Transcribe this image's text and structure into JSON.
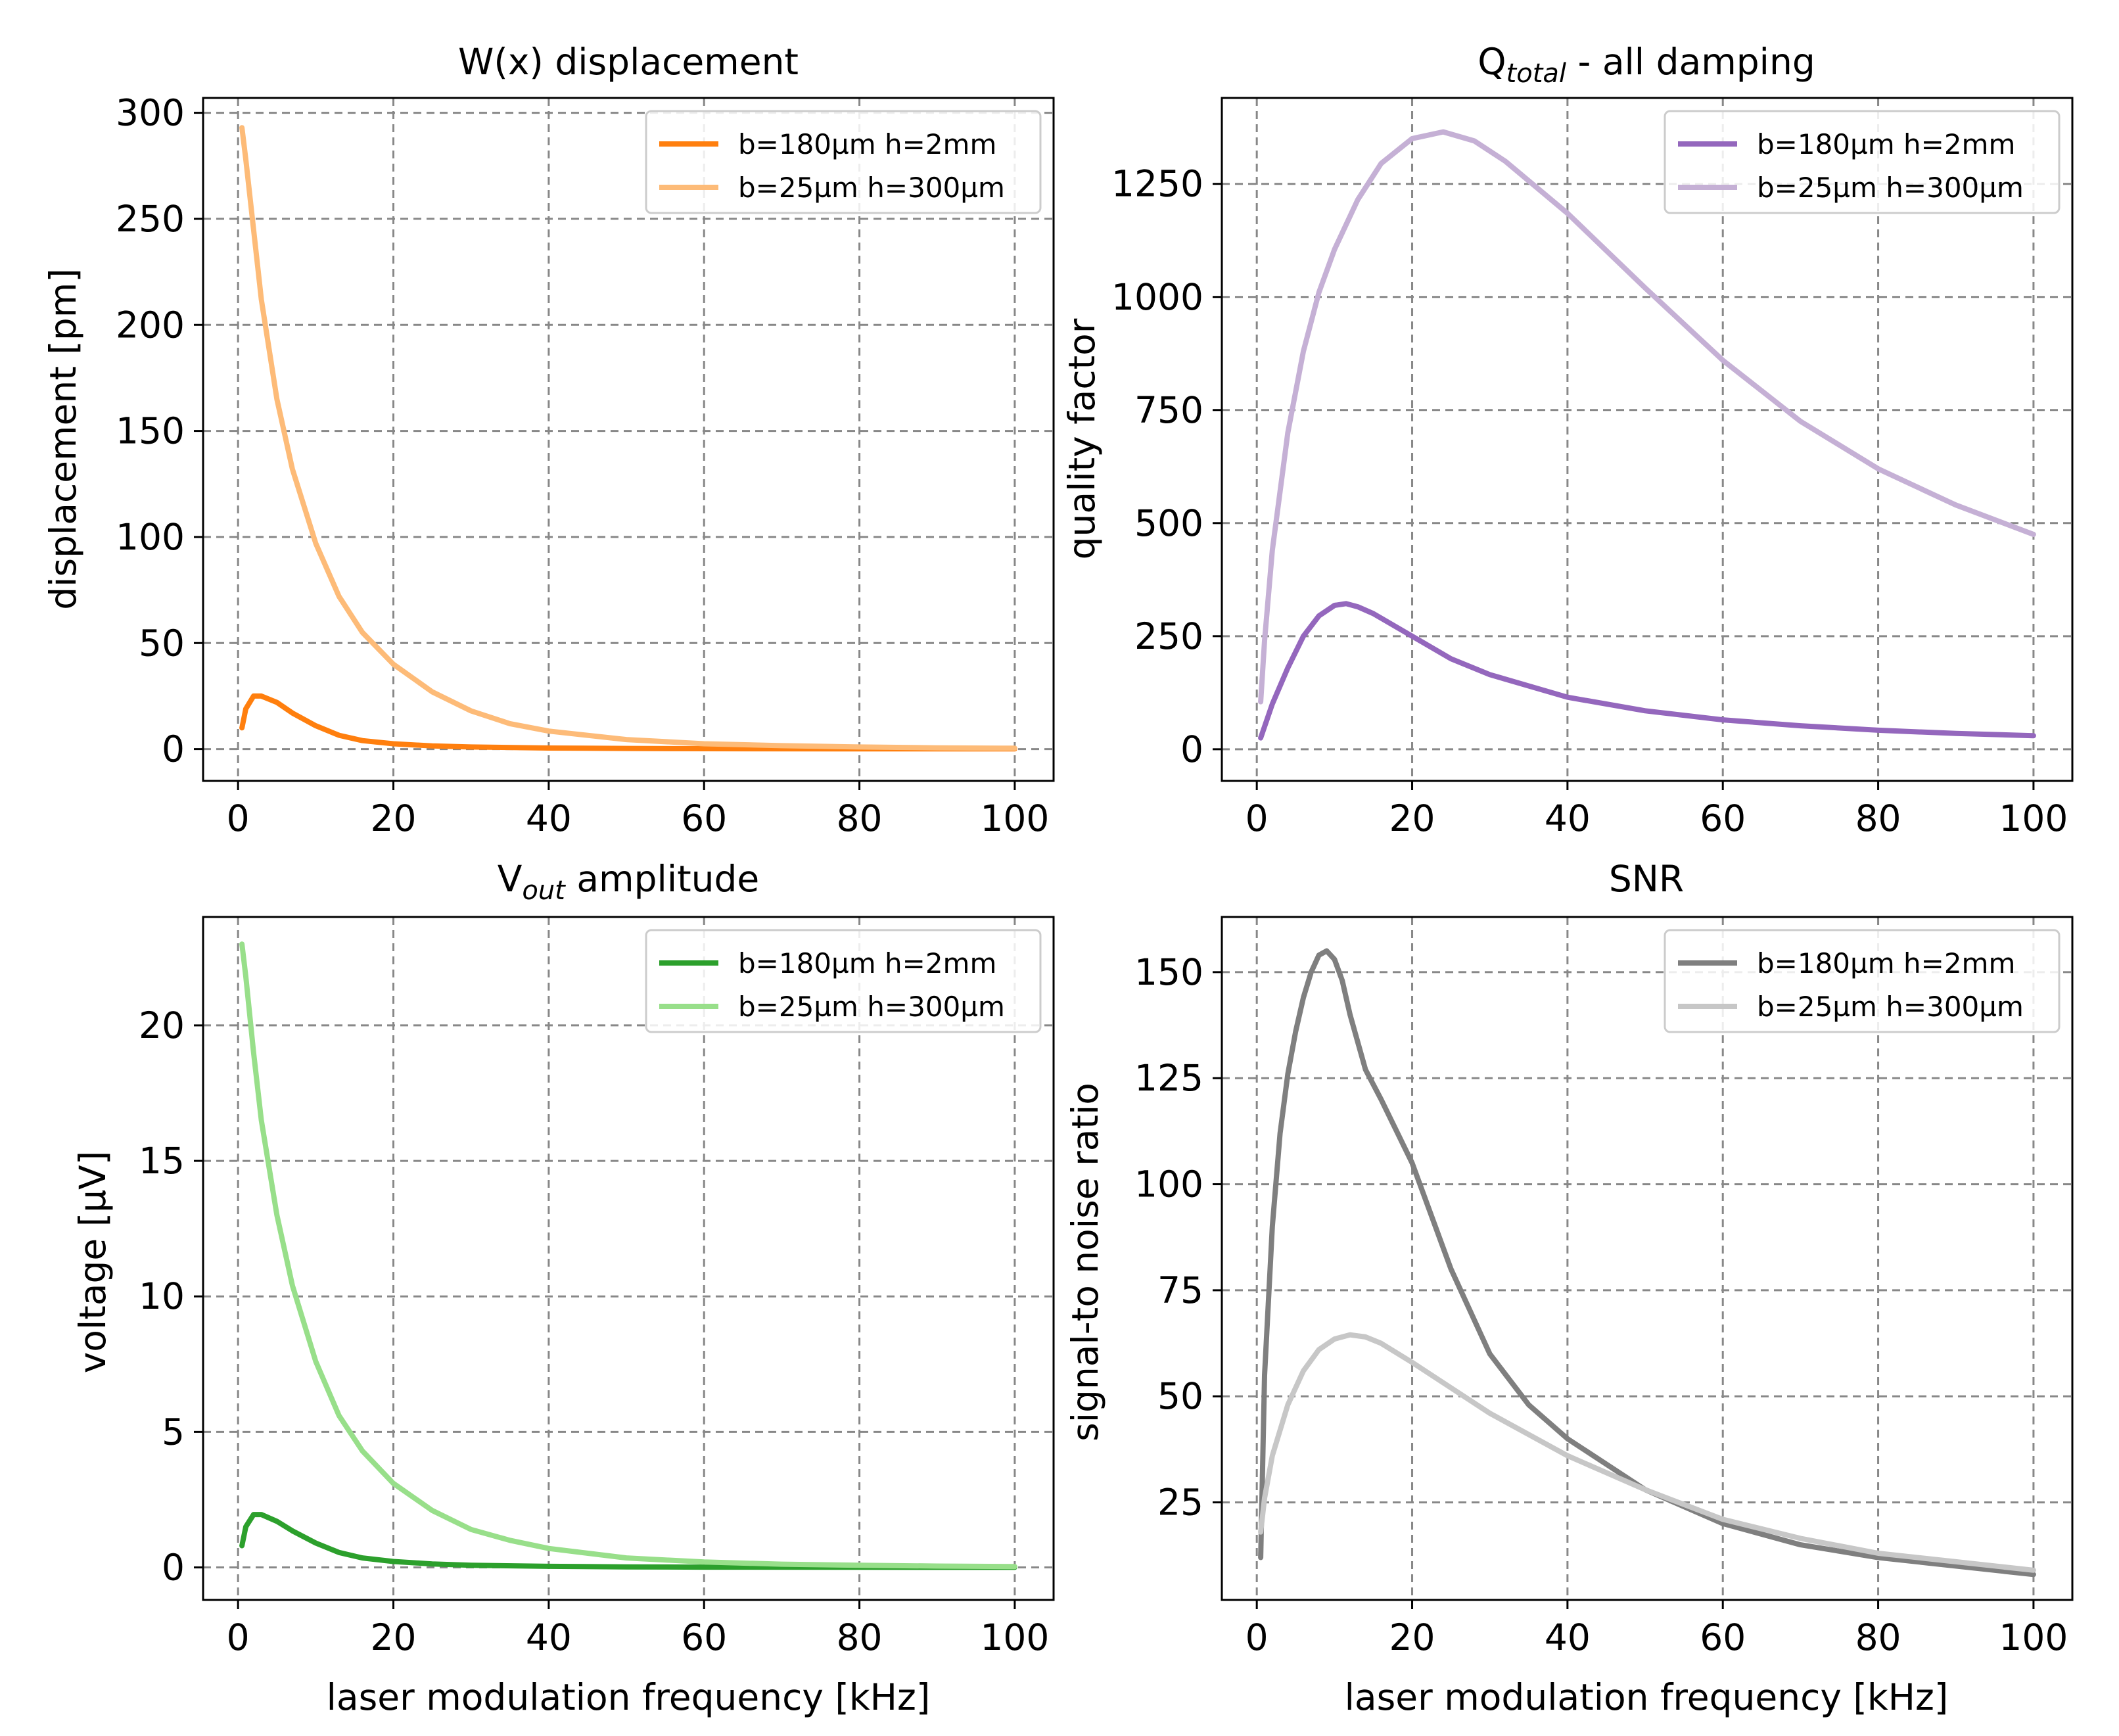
{
  "chart_data": [
    {
      "type": "line",
      "title": "W(x) displacement",
      "xlabel": "",
      "ylabel": "displacement [pm]",
      "xlim": [
        -4.5,
        105
      ],
      "ylim": [
        -15,
        307
      ],
      "xticks": [
        0,
        20,
        40,
        60,
        80,
        100
      ],
      "yticks": [
        0,
        50,
        100,
        150,
        200,
        250,
        300
      ],
      "grid": true,
      "legend": "top-right",
      "series": [
        {
          "name": "b=180µm h=2mm",
          "color": "#ff7f0e",
          "x": [
            0.5,
            1,
            2,
            3,
            5,
            7,
            10,
            13,
            16,
            20,
            25,
            30,
            40,
            50,
            60,
            80,
            100
          ],
          "y": [
            10,
            19,
            25,
            25,
            22,
            17,
            11,
            6.5,
            4,
            2.5,
            1.5,
            1,
            0.5,
            0.3,
            0.2,
            0.1,
            0.1
          ]
        },
        {
          "name": "b=25µm h=300µm",
          "color": "#fdbb78",
          "x": [
            0.5,
            1,
            2,
            3,
            5,
            7,
            10,
            13,
            16,
            20,
            25,
            30,
            35,
            40,
            50,
            60,
            70,
            80,
            90,
            100
          ],
          "y": [
            293,
            278,
            245,
            212,
            165,
            132,
            97,
            72,
            55,
            40,
            27,
            18,
            12,
            8.5,
            4.5,
            2.5,
            1.6,
            1,
            0.6,
            0.4
          ]
        }
      ]
    },
    {
      "type": "line",
      "title": "Q",
      "title_sub": "total",
      "title_suffix": " - all damping",
      "xlabel": "",
      "ylabel": "quality factor",
      "xlim": [
        -4.5,
        105
      ],
      "ylim": [
        -70,
        1440
      ],
      "xticks": [
        0,
        20,
        40,
        60,
        80,
        100
      ],
      "yticks": [
        0,
        250,
        500,
        750,
        1000,
        1250
      ],
      "grid": true,
      "legend": "top-right",
      "series": [
        {
          "name": "b=180µm h=2mm",
          "color": "#9467bd",
          "x": [
            0.5,
            2,
            4,
            6,
            8,
            10,
            11.5,
            13,
            15,
            20,
            25,
            30,
            40,
            50,
            60,
            70,
            80,
            90,
            100
          ],
          "y": [
            25,
            100,
            180,
            250,
            295,
            318,
            322,
            315,
            300,
            250,
            200,
            165,
            115,
            85,
            65,
            52,
            42,
            35,
            30
          ]
        },
        {
          "name": "b=25µm h=300µm",
          "color": "#c5b0d5",
          "x": [
            0.5,
            1,
            2,
            4,
            6,
            8,
            10,
            13,
            16,
            20,
            24,
            28,
            32,
            40,
            50,
            60,
            70,
            80,
            90,
            100
          ],
          "y": [
            105,
            240,
            440,
            700,
            880,
            1010,
            1105,
            1215,
            1295,
            1350,
            1365,
            1345,
            1300,
            1185,
            1020,
            860,
            725,
            620,
            540,
            475
          ]
        }
      ]
    },
    {
      "type": "line",
      "title": "V",
      "title_sub": "out",
      "title_suffix": " amplitude",
      "xlabel": "laser modulation frequency [kHz]",
      "ylabel": "voltage [µV]",
      "xlim": [
        -4.5,
        105
      ],
      "ylim": [
        -1.2,
        24
      ],
      "xticks": [
        0,
        20,
        40,
        60,
        80,
        100
      ],
      "yticks": [
        0,
        5,
        10,
        15,
        20
      ],
      "grid": true,
      "legend": "top-right",
      "series": [
        {
          "name": "b=180µm h=2mm",
          "color": "#2ca02c",
          "x": [
            0.5,
            1,
            2,
            3,
            5,
            7,
            10,
            13,
            16,
            20,
            25,
            30,
            40,
            50,
            60,
            80,
            100
          ],
          "y": [
            0.8,
            1.5,
            1.95,
            1.95,
            1.7,
            1.35,
            0.9,
            0.55,
            0.35,
            0.22,
            0.13,
            0.08,
            0.04,
            0.02,
            0.01,
            0.005,
            0.003
          ]
        },
        {
          "name": "b=25µm h=300µm",
          "color": "#98df8a",
          "x": [
            0.5,
            1,
            2,
            3,
            5,
            7,
            10,
            13,
            16,
            20,
            25,
            30,
            35,
            40,
            50,
            60,
            70,
            80,
            90,
            100
          ],
          "y": [
            23,
            21.8,
            19,
            16.5,
            13,
            10.4,
            7.6,
            5.6,
            4.3,
            3.1,
            2.1,
            1.4,
            1.0,
            0.7,
            0.35,
            0.2,
            0.12,
            0.08,
            0.05,
            0.03
          ]
        }
      ]
    },
    {
      "type": "line",
      "title": "SNR",
      "xlabel": "laser modulation frequency [kHz]",
      "ylabel": "signal-to noise ratio",
      "xlim": [
        -4.5,
        105
      ],
      "ylim": [
        2,
        163
      ],
      "xticks": [
        0,
        20,
        40,
        60,
        80,
        100
      ],
      "yticks": [
        25,
        50,
        75,
        100,
        125,
        150
      ],
      "grid": true,
      "legend": "top-right",
      "series": [
        {
          "name": "b=180µm h=2mm",
          "color": "#7f7f7f",
          "x": [
            0.5,
            1,
            2,
            3,
            4,
            5,
            6,
            7,
            8,
            9,
            10,
            11,
            12,
            14,
            16,
            20,
            25,
            30,
            35,
            40,
            50,
            60,
            70,
            80,
            90,
            100
          ],
          "y": [
            12,
            55,
            90,
            112,
            126,
            136,
            144,
            150,
            154,
            155,
            153,
            148,
            140,
            127,
            120,
            105,
            80,
            60,
            48,
            40,
            28,
            20,
            15,
            12,
            10,
            8
          ]
        },
        {
          "name": "b=25µm h=300µm",
          "color": "#c7c7c7",
          "x": [
            0.5,
            1,
            2,
            4,
            6,
            8,
            10,
            12,
            14,
            16,
            20,
            25,
            30,
            40,
            50,
            60,
            70,
            80,
            90,
            100
          ],
          "y": [
            18,
            26,
            36,
            48,
            56,
            61,
            63.5,
            64.5,
            64,
            62.5,
            58,
            52,
            46,
            36,
            28,
            21,
            16.5,
            13,
            11,
            9
          ]
        }
      ]
    }
  ]
}
